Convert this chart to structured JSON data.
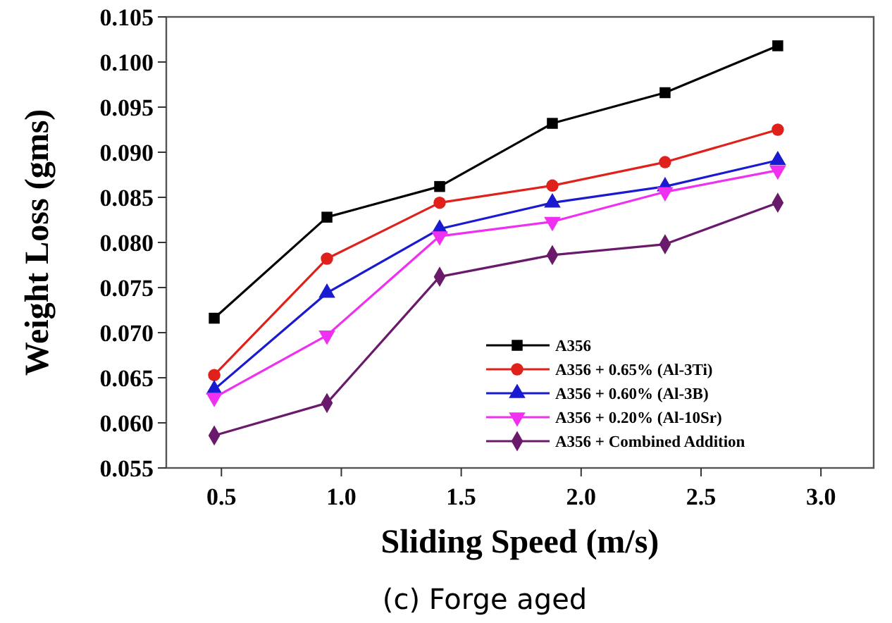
{
  "chart_data": {
    "type": "line",
    "xlabel": "Sliding Speed (m/s)",
    "ylabel": "Weight Loss (gms)",
    "annotations": [
      "(c) Forge aged"
    ],
    "xlim": [
      0.27,
      3.22
    ],
    "ylim": [
      0.055,
      0.105
    ],
    "xticks": [
      0.5,
      {
        "value": 1,
        "label": "1.0"
      },
      1.5,
      {
        "value": 2,
        "label": "2.0"
      },
      2.5,
      {
        "value": 3,
        "label": "3.0"
      }
    ],
    "yticks": [
      {
        "value": 0.055,
        "label": "0.055"
      },
      {
        "value": 0.06,
        "label": "0.060"
      },
      {
        "value": 0.065,
        "label": "0.065"
      },
      {
        "value": 0.07,
        "label": "0.070"
      },
      {
        "value": 0.075,
        "label": "0.075"
      },
      {
        "value": 0.08,
        "label": "0.080"
      },
      {
        "value": 0.085,
        "label": "0.085"
      },
      {
        "value": 0.09,
        "label": "0.090"
      },
      {
        "value": 0.095,
        "label": "0.095"
      },
      {
        "value": 0.1,
        "label": "0.100"
      },
      {
        "value": 0.105,
        "label": "0.105"
      }
    ],
    "x": [
      0.47,
      0.94,
      1.41,
      1.88,
      2.35,
      2.82
    ],
    "grid": false,
    "legend": "bottom right",
    "line_style": "solid",
    "series": [
      {
        "name": "A356",
        "color": "#000000",
        "marker": "square",
        "values": [
          0.0716,
          0.0828,
          0.0862,
          0.0932,
          0.0966,
          0.1018
        ]
      },
      {
        "name": "A356 + 0.65%  (Al-3Ti)",
        "color": "#e0201a",
        "marker": "circle",
        "values": [
          0.0653,
          0.0782,
          0.0844,
          0.0863,
          0.0889,
          0.0925
        ]
      },
      {
        "name": "A356 + 0.60%  (Al-3B)",
        "color": "#1a1ad0",
        "marker": "triangle",
        "values": [
          0.0637,
          0.0744,
          0.0815,
          0.0844,
          0.0862,
          0.0891
        ]
      },
      {
        "name": "A356 + 0.20%  (Al-10Sr)",
        "color": "#f030f0",
        "marker": "triangle-down",
        "values": [
          0.0628,
          0.0697,
          0.0807,
          0.0823,
          0.0856,
          0.088
        ]
      },
      {
        "name": "A356 + Combined Addition",
        "color": "#6a1a6a",
        "marker": "diamond",
        "values": [
          0.0586,
          0.0622,
          0.0762,
          0.0786,
          0.0798,
          0.0844
        ]
      }
    ]
  }
}
